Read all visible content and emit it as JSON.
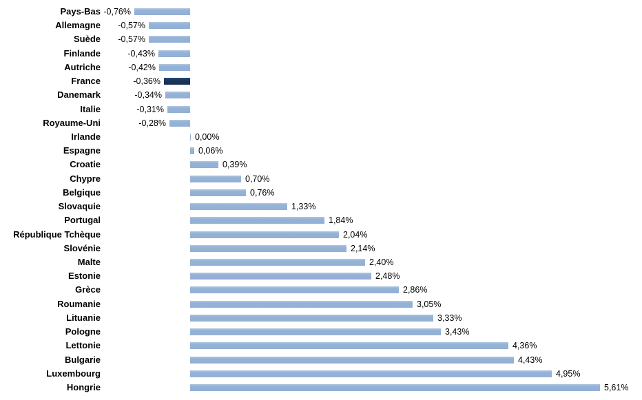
{
  "chart_data": {
    "type": "bar",
    "orientation": "horizontal",
    "title": "",
    "xlabel": "",
    "ylabel": "",
    "legend": false,
    "grid": false,
    "value_format": "percent with comma decimal",
    "xlim": [
      -1.0,
      6.2
    ],
    "categories": [
      "Pays-Bas",
      "Allemagne",
      "Suède",
      "Finlande",
      "Autriche",
      "France",
      "Danemark",
      "Italie",
      "Royaume-Uni",
      "Irlande",
      "Espagne",
      "Croatie",
      "Chypre",
      "Belgique",
      "Slovaquie",
      "Portugal",
      "République Tchèque",
      "Slovénie",
      "Malte",
      "Estonie",
      "Grèce",
      "Roumanie",
      "Lituanie",
      "Pologne",
      "Lettonie",
      "Bulgarie",
      "Luxembourg",
      "Hongrie"
    ],
    "values": [
      -0.76,
      -0.57,
      -0.57,
      -0.43,
      -0.42,
      -0.36,
      -0.34,
      -0.31,
      -0.28,
      0.0,
      0.06,
      0.39,
      0.7,
      0.76,
      1.33,
      1.84,
      2.04,
      2.14,
      2.4,
      2.48,
      2.86,
      3.05,
      3.33,
      3.43,
      4.36,
      4.43,
      4.95,
      5.61
    ],
    "labels": [
      "-0,76%",
      "-0,57%",
      "-0,57%",
      "-0,43%",
      "-0,42%",
      "-0,36%",
      "-0,34%",
      "-0,31%",
      "-0,28%",
      "0,00%",
      "0,06%",
      "0,39%",
      "0,70%",
      "0,76%",
      "1,33%",
      "1,84%",
      "2,04%",
      "2,14%",
      "2,40%",
      "2,48%",
      "2,86%",
      "3,05%",
      "3,33%",
      "3,43%",
      "4,36%",
      "4,43%",
      "4,95%",
      "5,61%"
    ],
    "highlight_category": "France",
    "colors": {
      "bar": "#95B3D7",
      "highlight_bar": "#17375E",
      "text": "#000000",
      "background": "#FFFFFF"
    }
  }
}
